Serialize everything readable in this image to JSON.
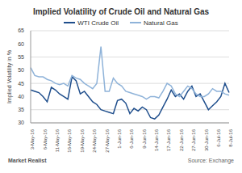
{
  "chart_data": {
    "type": "line",
    "title": "Implied Volatility of Crude Oil and Natural Gas",
    "y_label": "Implied Volatility in %",
    "annotations": [
      "Market Realist",
      "Source: Exchange"
    ],
    "categories": [
      "3-May-16",
      null,
      null,
      "6-May-16",
      null,
      null,
      "11-May-16",
      null,
      null,
      "16-May-16",
      null,
      null,
      "19-May-16",
      null,
      null,
      "24-May-16",
      null,
      null,
      "27-May-16",
      null,
      null,
      "1-Jun-16",
      null,
      null,
      "6-Jun-16",
      null,
      null,
      "9-Jun-16",
      null,
      null,
      "14-Jun-16",
      null,
      null,
      "17-Jun-16",
      null,
      null,
      "22-Jun-16",
      null,
      null,
      "27-Jun-16",
      null,
      null,
      "30-Jun-16",
      null,
      null,
      "6-Jul-16",
      null,
      null,
      "8-Jul-16"
    ],
    "series": [
      {
        "name": "WTI Crude Oil",
        "color": "#1f4e8c",
        "values": [
          42.5,
          42,
          41.5,
          40,
          38,
          43.5,
          42.5,
          41,
          40,
          39,
          47.5,
          46,
          41,
          42,
          40,
          38,
          37,
          35,
          34.5,
          34,
          33.5,
          38.5,
          39,
          37.5,
          33.5,
          35.5,
          34.5,
          36,
          35,
          32,
          31.5,
          33,
          36,
          39,
          42.5,
          40,
          41,
          39,
          42,
          44,
          40,
          41,
          38,
          35,
          36.5,
          38,
          40,
          45,
          41.5
        ]
      },
      {
        "name": "Natural Gas",
        "color": "#8fb3d9",
        "values": [
          51,
          48,
          47.5,
          47.5,
          46.5,
          46,
          45,
          44.5,
          45,
          44,
          48,
          47,
          46.5,
          45,
          44,
          43,
          45,
          59,
          42,
          42,
          47,
          45,
          44,
          42,
          41.5,
          41,
          40.5,
          40,
          39,
          40,
          40,
          39.5,
          42,
          45,
          44,
          41,
          40,
          42,
          44,
          43,
          41,
          40,
          40,
          41,
          43,
          42,
          42,
          41,
          40.5
        ]
      }
    ],
    "ylim": [
      30,
      65
    ],
    "yticks": [
      30,
      35,
      40,
      45,
      50,
      55,
      60,
      65
    ],
    "grid": true,
    "legend": "top"
  }
}
